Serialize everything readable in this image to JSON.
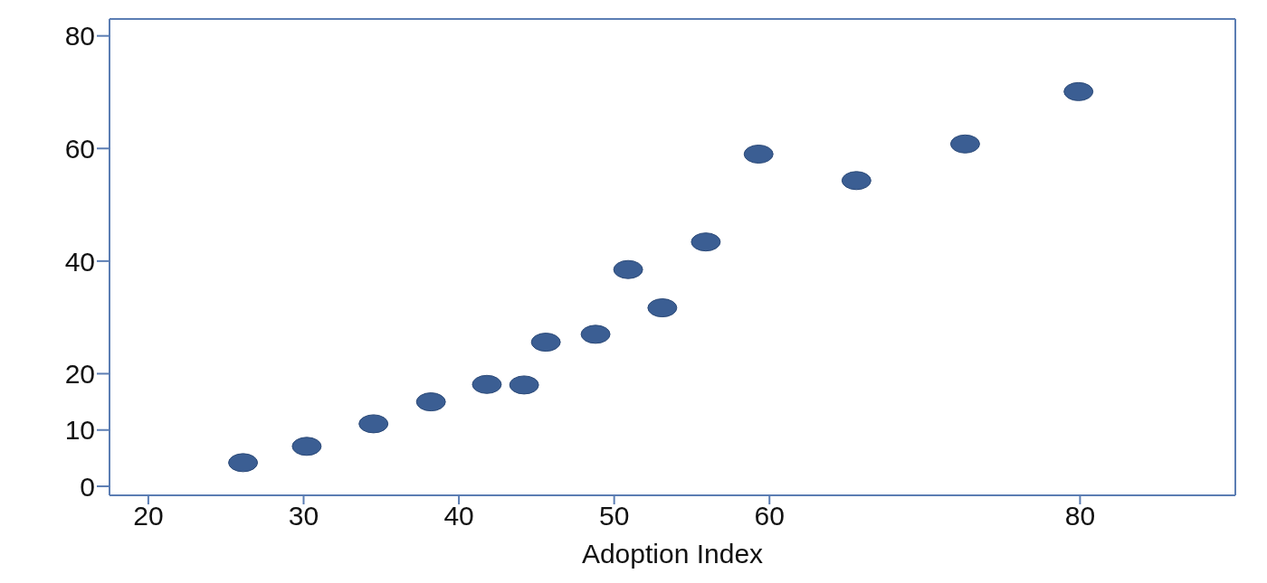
{
  "chart_data": {
    "type": "scatter",
    "xlabel": "Adoption Index",
    "x": [
      26.1,
      30.2,
      34.5,
      38.2,
      41.8,
      44.2,
      45.6,
      48.8,
      50.9,
      53.1,
      55.9,
      59.3,
      65.6,
      72.6,
      79.9
    ],
    "values": [
      4.2,
      7.1,
      11.1,
      15.0,
      18.1,
      18.0,
      25.6,
      27.0,
      38.5,
      31.7,
      43.4,
      59.0,
      54.3,
      60.8,
      70.1
    ],
    "color": "#3b5e93",
    "xlim": [
      17.5,
      90
    ],
    "xticks": [
      20,
      30,
      40,
      50,
      60,
      80
    ],
    "ylim": [
      -1.6,
      83
    ],
    "yticks": [
      0,
      10,
      20,
      40,
      60,
      80
    ],
    "marker": "circle",
    "grid": false,
    "legend": false
  }
}
